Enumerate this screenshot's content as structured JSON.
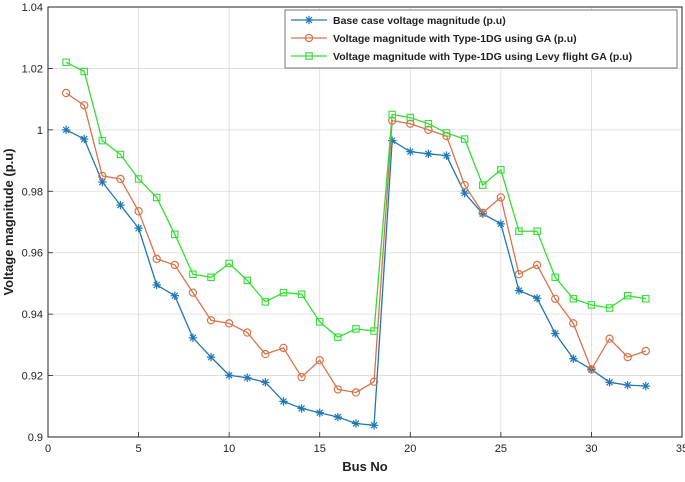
{
  "chart_data": {
    "type": "line",
    "title": "",
    "xlabel": "Bus No",
    "ylabel": "Voltage magnitude (p.u)",
    "xlim": [
      0,
      35
    ],
    "ylim": [
      0.9,
      1.04
    ],
    "xticks": [
      0,
      5,
      10,
      15,
      20,
      25,
      30,
      35
    ],
    "xtick_labels": [
      "0",
      "5",
      "10",
      "15",
      "20",
      "25",
      "30",
      "35"
    ],
    "yticks": [
      0.9,
      0.92,
      0.94,
      0.96,
      0.98,
      1.0,
      1.02,
      1.04
    ],
    "ytick_labels": [
      "0.9",
      "0.92",
      "0.94",
      "0.96",
      "0.98",
      "1",
      "1.02",
      "1.04"
    ],
    "grid": true,
    "legend_position": "top-right",
    "x": [
      1,
      2,
      3,
      4,
      5,
      6,
      7,
      8,
      9,
      10,
      11,
      12,
      13,
      14,
      15,
      16,
      17,
      18,
      19,
      20,
      21,
      22,
      23,
      24,
      25,
      26,
      27,
      28,
      29,
      30,
      31,
      32,
      33
    ],
    "series": [
      {
        "name": "Base case voltage magnitude (p.u)",
        "color": "#1f77b4",
        "marker": "asterisk",
        "values": [
          1.0,
          0.997,
          0.983,
          0.9755,
          0.968,
          0.9495,
          0.946,
          0.9323,
          0.926,
          0.9201,
          0.9193,
          0.9178,
          0.9116,
          0.9093,
          0.9079,
          0.9065,
          0.9044,
          0.9038,
          0.9965,
          0.9929,
          0.9922,
          0.9916,
          0.9794,
          0.9727,
          0.9694,
          0.9477,
          0.9452,
          0.9337,
          0.9255,
          0.922,
          0.9178,
          0.9169,
          0.9166
        ]
      },
      {
        "name": "Voltage magnitude with Type-1DG using GA (p.u)",
        "color": "#d9734a",
        "marker": "circle",
        "values": [
          1.012,
          1.008,
          0.985,
          0.984,
          0.9735,
          0.958,
          0.956,
          0.947,
          0.938,
          0.937,
          0.934,
          0.927,
          0.929,
          0.9195,
          0.925,
          0.9155,
          0.9145,
          0.918,
          1.003,
          1.002,
          1.0,
          0.998,
          0.982,
          0.973,
          0.978,
          0.953,
          0.956,
          0.945,
          0.937,
          0.922,
          0.932,
          0.926,
          0.928
        ]
      },
      {
        "name": "Voltage magnitude with Type-1DG using Levy flight GA (p.u)",
        "color": "#33dd33",
        "marker": "square",
        "values": [
          1.022,
          1.019,
          0.9965,
          0.992,
          0.984,
          0.978,
          0.966,
          0.953,
          0.952,
          0.9565,
          0.951,
          0.944,
          0.947,
          0.9465,
          0.9375,
          0.9325,
          0.9352,
          0.9345,
          1.005,
          1.004,
          1.002,
          0.999,
          0.997,
          0.982,
          0.987,
          0.967,
          0.967,
          0.952,
          0.945,
          0.943,
          0.942,
          0.946,
          0.945
        ]
      }
    ]
  }
}
